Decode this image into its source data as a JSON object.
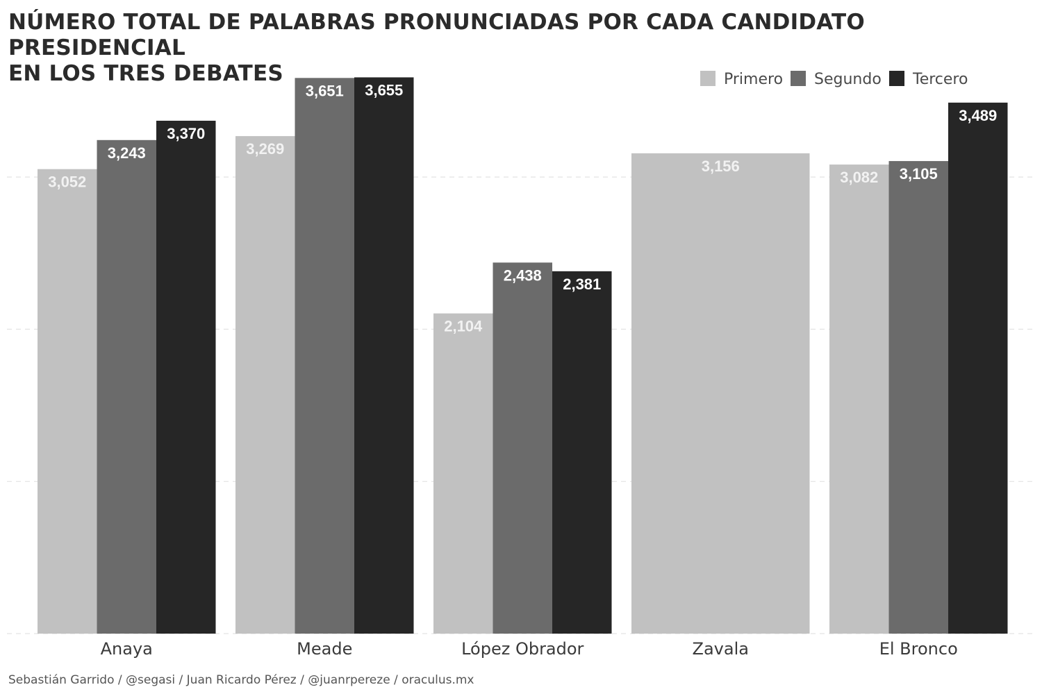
{
  "chart_data": {
    "type": "bar",
    "title_lines": [
      "NÚMERO TOTAL DE PALABRAS PRONUNCIADAS POR CADA CANDIDATO PRESIDENCIAL",
      "EN LOS TRES DEBATES"
    ],
    "categories": [
      "Anaya",
      "Meade",
      "López Obrador",
      "Zavala",
      "El Bronco"
    ],
    "series": [
      {
        "name": "Primero",
        "color": "#c1c1c1",
        "label_color": "#f2f2f2",
        "values": [
          3052,
          3269,
          2104,
          3156,
          3082
        ]
      },
      {
        "name": "Segundo",
        "color": "#6b6b6b",
        "label_color": "#ffffff",
        "values": [
          3243,
          3651,
          2438,
          null,
          3105
        ]
      },
      {
        "name": "Tercero",
        "color": "#262626",
        "label_color": "#ffffff",
        "values": [
          3370,
          3655,
          2381,
          null,
          3489
        ]
      }
    ],
    "value_labels": [
      [
        "3,052",
        "3,243",
        "3,370"
      ],
      [
        "3,269",
        "3,651",
        "3,655"
      ],
      [
        "2,104",
        "2,438",
        "2,381"
      ],
      [
        "3,156",
        null,
        null
      ],
      [
        "3,082",
        "3,105",
        "3,489"
      ]
    ],
    "ylim": [
      0,
      3700
    ],
    "gridlines": [
      0,
      1000,
      2000,
      3000
    ],
    "grid": true,
    "legend_position": "top-right",
    "xlabel": "",
    "ylabel": ""
  },
  "caption": "Sebastián Garrido / @segasi / Juan Ricardo Pérez / @juanrpereze / oraculus.mx"
}
